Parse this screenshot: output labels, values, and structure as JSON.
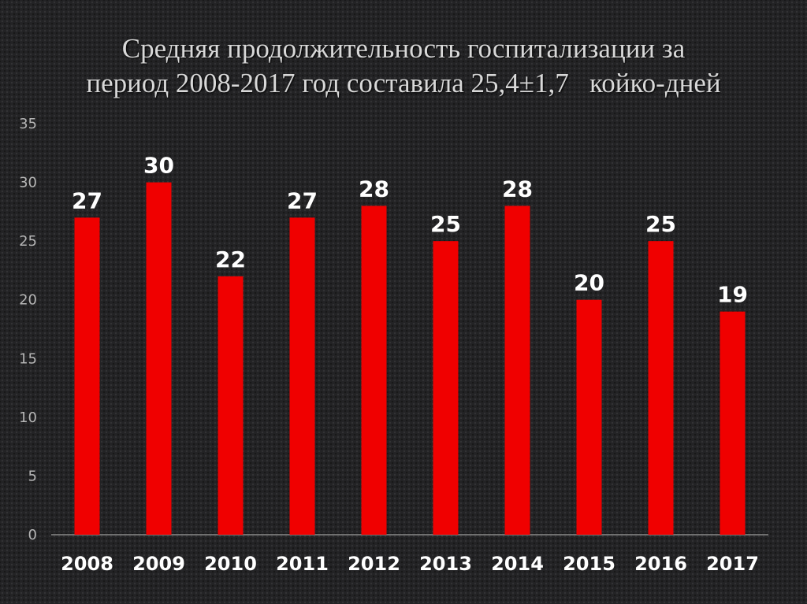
{
  "title_lines": [
    "Средняя продолжительность госпитализации за",
    "период 2008-2017 год составила 25,4±1,7   койко-дней"
  ],
  "chart_data": {
    "type": "bar",
    "title": "Средняя продолжительность госпитализации за период 2008-2017 год составила 25,4±1,7   койко-дней",
    "categories": [
      "2008",
      "2009",
      "2010",
      "2011",
      "2012",
      "2013",
      "2014",
      "2015",
      "2016",
      "2017"
    ],
    "series": [
      {
        "values": [
          27,
          30,
          22,
          27,
          28,
          25,
          28,
          20,
          25,
          19
        ]
      }
    ],
    "data_labels": [
      "27",
      "30",
      "22",
      "27",
      "28",
      "25",
      "28",
      "20",
      "25",
      "19"
    ],
    "ylim": [
      0,
      35
    ],
    "yticks": [
      "0",
      "5",
      "10",
      "15",
      "20",
      "25",
      "30",
      "35"
    ],
    "grid": false,
    "legend": "none",
    "bar_color": "#f00000",
    "axis_color": "#8a8a8a",
    "background_color": "#232325"
  }
}
